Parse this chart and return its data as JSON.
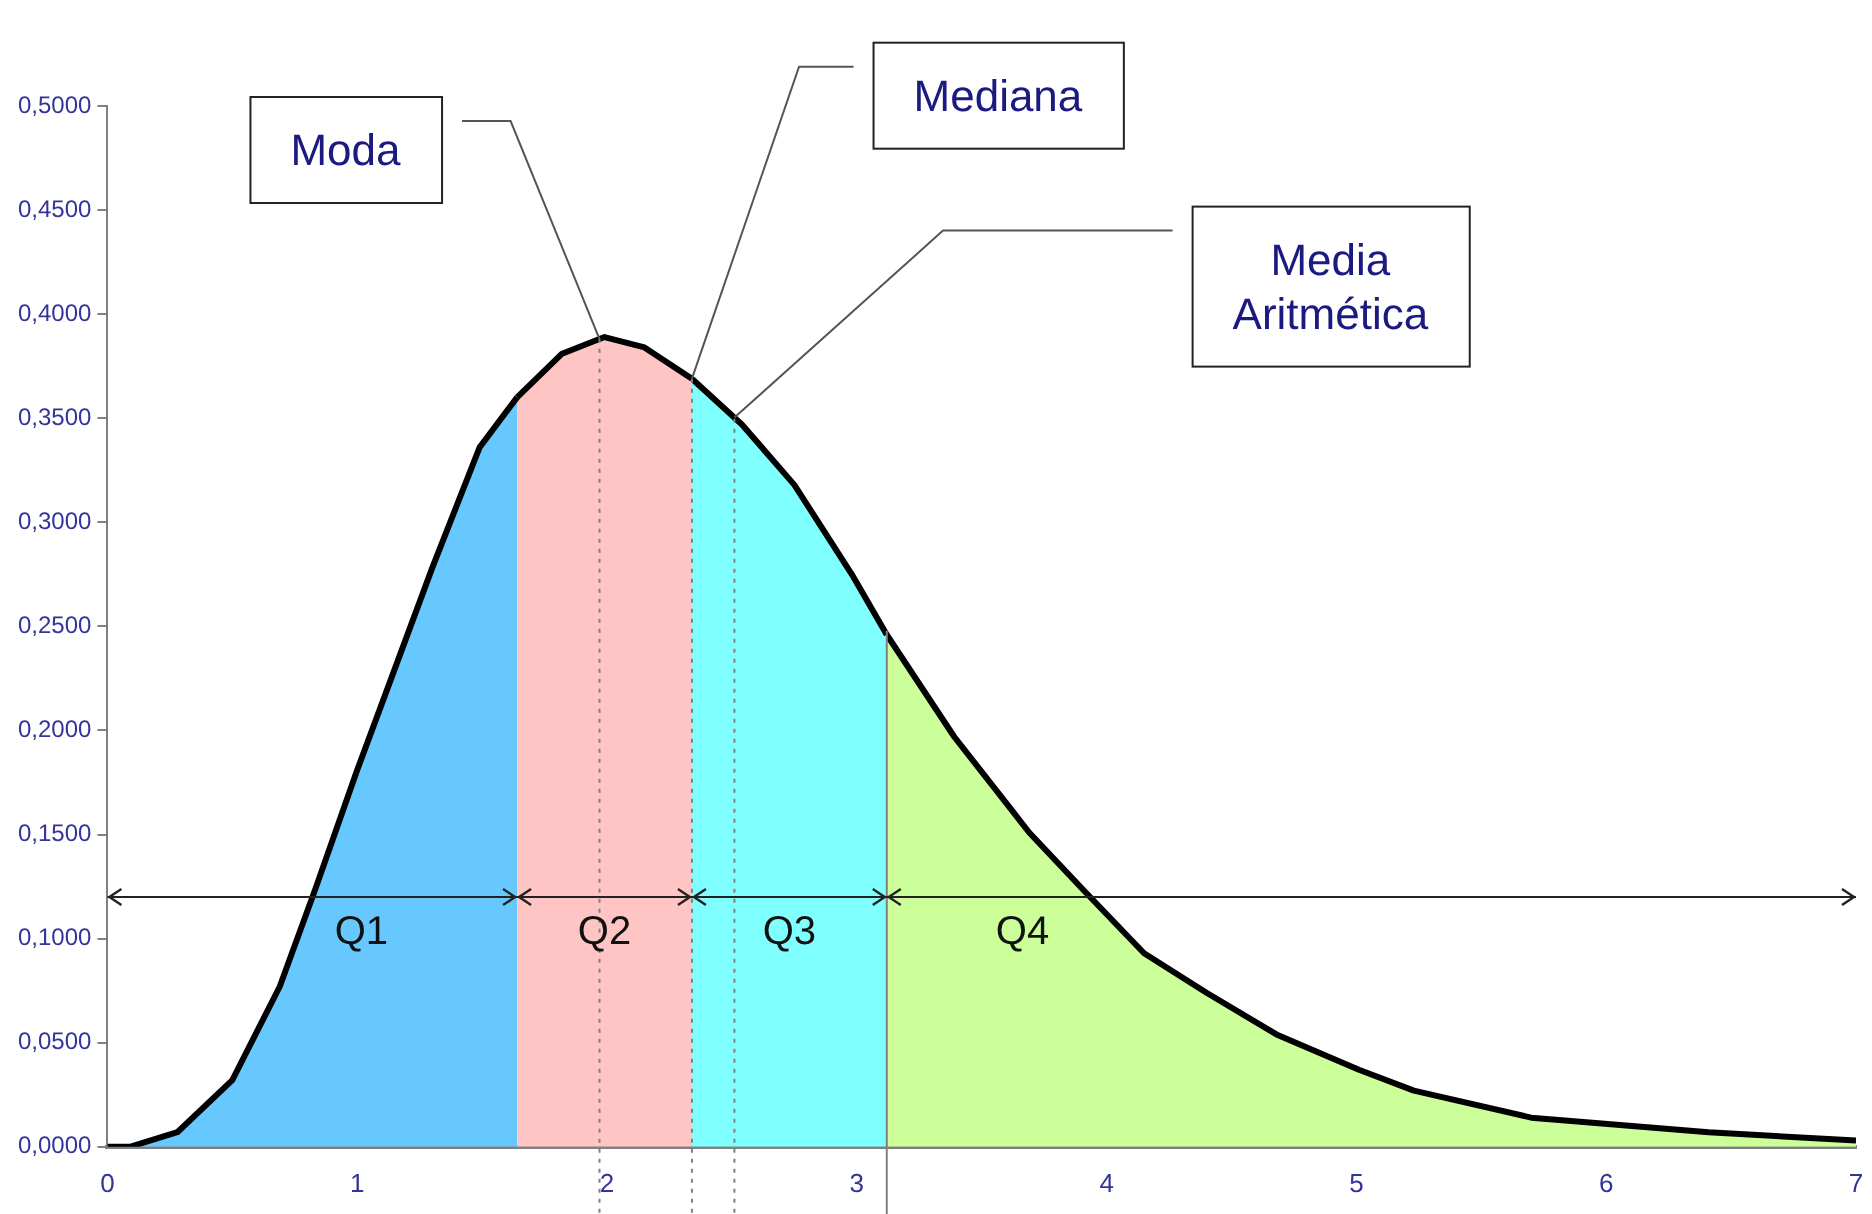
{
  "chart_data": {
    "type": "area",
    "xlim": [
      0,
      7
    ],
    "ylim": [
      0,
      0.5
    ],
    "xticks": [
      0,
      1,
      2,
      3,
      4,
      5,
      6,
      7
    ],
    "yticks": [
      {
        "value": 0,
        "label": "0,0000"
      },
      {
        "value": 0.05,
        "label": "0,0500"
      },
      {
        "value": 0.1,
        "label": "0,1000"
      },
      {
        "value": 0.15,
        "label": "0,1500"
      },
      {
        "value": 0.2,
        "label": "0,2000"
      },
      {
        "value": 0.25,
        "label": "0,2500"
      },
      {
        "value": 0.3,
        "label": "0,3000"
      },
      {
        "value": 0.35,
        "label": "0,3500"
      },
      {
        "value": 0.4,
        "label": "0,4000"
      },
      {
        "value": 0.45,
        "label": "0,4500"
      },
      {
        "value": 0.5,
        "label": "0,5000"
      }
    ],
    "grid": false,
    "legend": false,
    "series": [
      {
        "name": "Q1",
        "color": "#66c8ff",
        "x": [
          0,
          0.09,
          0.28,
          0.5,
          0.69,
          0.83,
          1.0,
          1.13,
          1.3,
          1.49,
          1.64
        ],
        "values": [
          0,
          0,
          0.007,
          0.032,
          0.077,
          0.123,
          0.181,
          0.223,
          0.278,
          0.336,
          0.36
        ]
      },
      {
        "name": "Q2",
        "color": "#ffc4c4",
        "x": [
          1.64,
          1.82,
          1.99,
          2.15,
          2.34
        ],
        "values": [
          0.36,
          0.381,
          0.389,
          0.384,
          0.369
        ]
      },
      {
        "name": "Q3",
        "color": "#80ffff",
        "x": [
          2.34,
          2.54,
          2.75,
          2.98,
          3.12
        ],
        "values": [
          0.369,
          0.347,
          0.318,
          0.275,
          0.246
        ]
      },
      {
        "name": "Q4",
        "color": "#ccff99",
        "x": [
          3.12,
          3.39,
          3.69,
          3.91,
          4.15,
          4.4,
          4.68,
          5.01,
          5.23,
          5.7,
          6.41,
          7
        ],
        "values": [
          0.246,
          0.197,
          0.151,
          0.123,
          0.093,
          0.074,
          0.054,
          0.037,
          0.027,
          0.014,
          0.007,
          0.003
        ]
      }
    ],
    "ref_lines": [
      {
        "axis": "x",
        "value": 1.97,
        "color": "#808080",
        "line_style": "dotted"
      },
      {
        "axis": "x",
        "value": 2.34,
        "color": "#808080",
        "line_style": "dotted"
      },
      {
        "axis": "x",
        "value": 2.51,
        "color": "#808080",
        "line_style": "dotted"
      },
      {
        "axis": "x",
        "value": 3.12,
        "color": "#808080",
        "line_style": "solid"
      },
      {
        "axis": "y",
        "value": 0.12,
        "color": "#222222",
        "line_style": "solid"
      }
    ],
    "annotations": [
      "Moda",
      "Mediana",
      "Media Aritmética"
    ]
  }
}
